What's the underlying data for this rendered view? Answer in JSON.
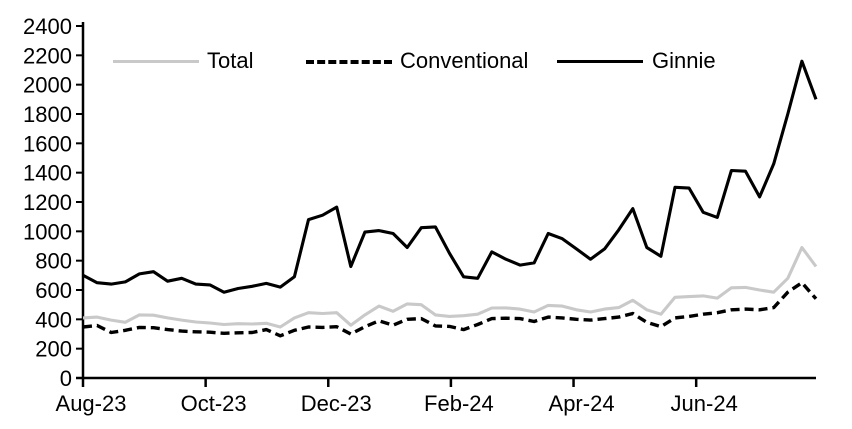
{
  "chart_data": {
    "type": "line",
    "title": "",
    "x_axis": {
      "tick_labels": [
        "Aug-23",
        "Oct-23",
        "Dec-23",
        "Feb-24",
        "Apr-24",
        "Jun-24"
      ],
      "tick_positions_weeks": [
        0,
        8.7,
        17.4,
        26.1,
        34.8,
        43.5
      ],
      "unit": "weekly observations, Aug-23 through Aug-24",
      "total_weeks": 52
    },
    "y_axis": {
      "min": 0,
      "max": 2400,
      "step": 200
    },
    "grid": false,
    "legend_position": "top",
    "colors": {
      "total": "#c9c9c9",
      "conventional": "#000000",
      "ginnie": "#000000"
    },
    "series": [
      {
        "name": "Total",
        "color": "#c9c9c9",
        "line_style": "solid",
        "values": [
          410,
          415,
          395,
          380,
          430,
          428,
          410,
          395,
          382,
          375,
          365,
          370,
          368,
          373,
          348,
          410,
          445,
          440,
          445,
          360,
          430,
          490,
          455,
          505,
          500,
          430,
          420,
          425,
          435,
          477,
          478,
          470,
          450,
          495,
          490,
          465,
          450,
          470,
          480,
          530,
          465,
          435,
          550,
          555,
          560,
          545,
          615,
          618,
          600,
          585,
          680,
          890,
          760
        ]
      },
      {
        "name": "Conventional",
        "color": "#000000",
        "line_style": "dashed",
        "values": [
          348,
          358,
          310,
          325,
          345,
          343,
          330,
          320,
          315,
          312,
          305,
          308,
          310,
          330,
          288,
          325,
          348,
          345,
          350,
          300,
          350,
          390,
          360,
          400,
          405,
          355,
          352,
          330,
          365,
          405,
          408,
          405,
          385,
          415,
          410,
          400,
          395,
          405,
          415,
          440,
          380,
          350,
          410,
          420,
          435,
          445,
          465,
          470,
          465,
          480,
          585,
          650,
          540
        ]
      },
      {
        "name": "Ginnie",
        "color": "#000000",
        "line_style": "solid",
        "values": [
          700,
          650,
          640,
          655,
          710,
          725,
          660,
          680,
          640,
          635,
          585,
          610,
          625,
          645,
          620,
          690,
          1080,
          1110,
          1165,
          760,
          995,
          1005,
          985,
          890,
          1025,
          1030,
          850,
          690,
          680,
          860,
          810,
          770,
          785,
          985,
          950,
          880,
          810,
          880,
          1010,
          1155,
          890,
          830,
          1300,
          1295,
          1130,
          1095,
          1415,
          1410,
          1235,
          1460,
          1800,
          2160,
          1900
        ]
      }
    ]
  }
}
